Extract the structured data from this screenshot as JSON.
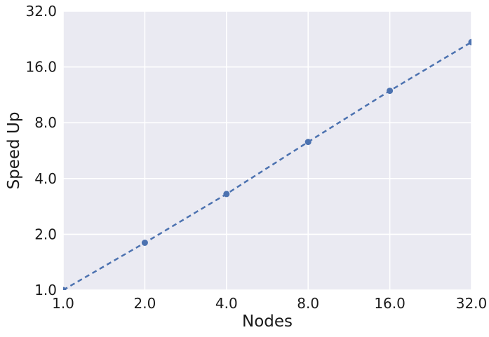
{
  "chart_data": {
    "type": "line",
    "title": "",
    "xlabel": "Nodes",
    "ylabel": "Speed Up",
    "x_scale": "log2",
    "y_scale": "log2",
    "x": [
      1,
      2,
      4,
      8,
      16,
      32
    ],
    "series": [
      {
        "name": "speedup",
        "x": [
          1,
          2,
          4,
          8,
          16,
          32
        ],
        "y": [
          1.0,
          1.8,
          3.3,
          6.3,
          11.9,
          21.8
        ],
        "line_style": "dashed",
        "marker": "circle"
      }
    ],
    "x_ticks": [
      1,
      2,
      4,
      8,
      16,
      32
    ],
    "y_ticks": [
      1,
      2,
      4,
      8,
      16,
      32
    ],
    "x_tick_labels": [
      "1.0",
      "2.0",
      "4.0",
      "8.0",
      "16.0",
      "32.0"
    ],
    "y_tick_labels": [
      "1.0",
      "2.0",
      "4.0",
      "8.0",
      "16.0",
      "32.0"
    ],
    "xlim": [
      1,
      32
    ],
    "ylim": [
      1,
      32
    ],
    "grid": true,
    "legend": false
  },
  "style": {
    "line_color": "#4C72B0",
    "marker_color": "#4C72B0",
    "plot_bg_color": "#EAEAF2",
    "grid_color": "#FFFFFF",
    "text_color": "#1a1a1a",
    "figure_bg_color": "#FFFFFF"
  }
}
